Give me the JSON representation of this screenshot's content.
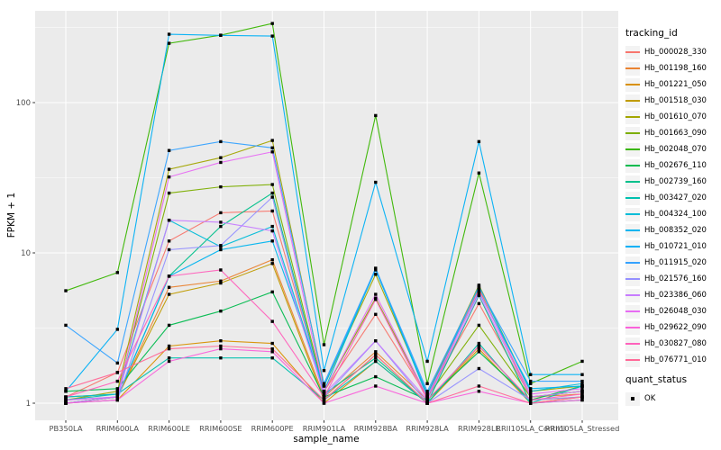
{
  "colors": {
    "panel_bg": "#EBEBEB",
    "grid": "#FFFFFF",
    "tick_mark": "#333333",
    "tick_text": "#4D4D4D",
    "title_text": "#000000",
    "point": "#000000",
    "legend_key_bg": "#F3F3F3"
  },
  "chart_data": {
    "type": "line",
    "title": "",
    "x_label": "sample_name",
    "y_label": "FPKM + 1",
    "y_scale": "log10",
    "y_ticks": [
      1,
      10,
      100
    ],
    "y_minor_ticks": [
      3.162,
      31.62,
      316.2
    ],
    "ylim": [
      0.78,
      410
    ],
    "grid": "on",
    "legend_position": "right",
    "point_shape": "square",
    "categories": [
      "PB350LA",
      "RRIM600LA",
      "RRIM600LE",
      "RRIM600SE",
      "RRIM600PE",
      "RRIM901LA",
      "RRIM928BA",
      "RRIM928LA",
      "RRIM928LE",
      "RRII105LA_Control",
      "RRII105LA_Stressed"
    ],
    "series": [
      {
        "name": "Hb_000028_330",
        "color": "#F8766D",
        "values": [
          1.1,
          1.6,
          12.0,
          18.5,
          19.0,
          1.2,
          3.9,
          1.1,
          4.6,
          1.1,
          1.2
        ]
      },
      {
        "name": "Hb_001198_160",
        "color": "#EA8331",
        "values": [
          1.0,
          1.1,
          5.9,
          6.5,
          9.0,
          1.1,
          2.2,
          1.05,
          5.8,
          1.1,
          1.15
        ]
      },
      {
        "name": "Hb_001221_050",
        "color": "#D89000",
        "values": [
          1.0,
          1.05,
          2.4,
          2.6,
          2.5,
          1.0,
          1.9,
          1.0,
          2.3,
          1.0,
          1.1
        ]
      },
      {
        "name": "Hb_001518_030",
        "color": "#C09B00",
        "values": [
          1.0,
          1.1,
          5.3,
          6.3,
          8.5,
          1.05,
          2.1,
          1.0,
          2.4,
          1.05,
          1.1
        ]
      },
      {
        "name": "Hb_001610_070",
        "color": "#A3A500",
        "values": [
          1.05,
          1.2,
          36.0,
          43.0,
          56.0,
          1.3,
          7.2,
          1.15,
          6.1,
          1.2,
          1.3
        ]
      },
      {
        "name": "Hb_001663_090",
        "color": "#7CAE00",
        "values": [
          1.1,
          1.15,
          25.0,
          27.5,
          28.5,
          1.2,
          5.0,
          1.1,
          3.3,
          1.1,
          1.2
        ]
      },
      {
        "name": "Hb_002048_070",
        "color": "#39B600",
        "values": [
          5.6,
          7.4,
          248,
          281,
          336,
          2.45,
          82.0,
          1.35,
          34.0,
          1.35,
          1.9
        ]
      },
      {
        "name": "Hb_002676_110",
        "color": "#00BB4E",
        "values": [
          1.2,
          1.25,
          3.3,
          4.1,
          5.5,
          1.1,
          1.5,
          1.05,
          2.2,
          1.05,
          1.3
        ]
      },
      {
        "name": "Hb_002739_160",
        "color": "#00C08B",
        "values": [
          1.0,
          1.1,
          7.0,
          15.0,
          25.0,
          1.15,
          2.0,
          1.0,
          5.2,
          1.0,
          1.05
        ]
      },
      {
        "name": "Hb_003427_020",
        "color": "#00C0AF",
        "values": [
          1.05,
          1.15,
          2.0,
          2.0,
          2.0,
          1.05,
          1.9,
          1.0,
          2.5,
          1.0,
          1.3
        ]
      },
      {
        "name": "Hb_004324_100",
        "color": "#00BCD8",
        "values": [
          1.1,
          1.15,
          16.5,
          11.0,
          15.0,
          1.2,
          7.9,
          1.1,
          6.0,
          1.2,
          1.35
        ]
      },
      {
        "name": "Hb_008352_020",
        "color": "#00B4EF",
        "values": [
          1.05,
          1.1,
          7.0,
          10.5,
          12.0,
          1.3,
          7.7,
          1.15,
          5.5,
          1.25,
          1.3
        ]
      },
      {
        "name": "Hb_010721_010",
        "color": "#00B0F6",
        "values": [
          1.2,
          3.1,
          285,
          280,
          277,
          1.65,
          29.5,
          1.9,
          55.0,
          1.55,
          1.55
        ]
      },
      {
        "name": "Hb_011915_020",
        "color": "#35A2FF",
        "values": [
          3.3,
          1.85,
          48.0,
          55.0,
          50.0,
          1.35,
          7.9,
          1.2,
          5.9,
          1.4,
          1.4
        ]
      },
      {
        "name": "Hb_021576_160",
        "color": "#9590FF",
        "values": [
          1.0,
          1.05,
          10.5,
          11.2,
          23.5,
          1.1,
          2.6,
          1.0,
          1.7,
          1.05,
          1.1
        ]
      },
      {
        "name": "Hb_023386_060",
        "color": "#C77CFF",
        "values": [
          1.0,
          1.1,
          16.5,
          16.0,
          14.0,
          1.15,
          2.6,
          1.05,
          5.3,
          1.1,
          1.2
        ]
      },
      {
        "name": "Hb_026048_030",
        "color": "#E76BF3",
        "values": [
          1.05,
          1.1,
          32.0,
          40.0,
          47.0,
          1.2,
          5.3,
          1.1,
          5.6,
          1.15,
          1.25
        ]
      },
      {
        "name": "Hb_029622_090",
        "color": "#FA62DB",
        "values": [
          1.0,
          1.05,
          1.9,
          2.3,
          2.2,
          1.0,
          1.3,
          1.0,
          1.2,
          1.0,
          1.05
        ]
      },
      {
        "name": "Hb_030827_080",
        "color": "#FF62BC",
        "values": [
          1.1,
          1.4,
          7.0,
          7.7,
          3.5,
          1.1,
          4.9,
          1.05,
          2.4,
          1.05,
          1.15
        ]
      },
      {
        "name": "Hb_076771_010",
        "color": "#FF6A98",
        "values": [
          1.25,
          1.6,
          2.3,
          2.4,
          2.3,
          1.05,
          2.1,
          1.0,
          1.3,
          1.0,
          1.1
        ]
      }
    ],
    "legend": {
      "color_title": "tracking_id",
      "shape_title": "quant_status",
      "shape_items": [
        "OK"
      ]
    }
  }
}
